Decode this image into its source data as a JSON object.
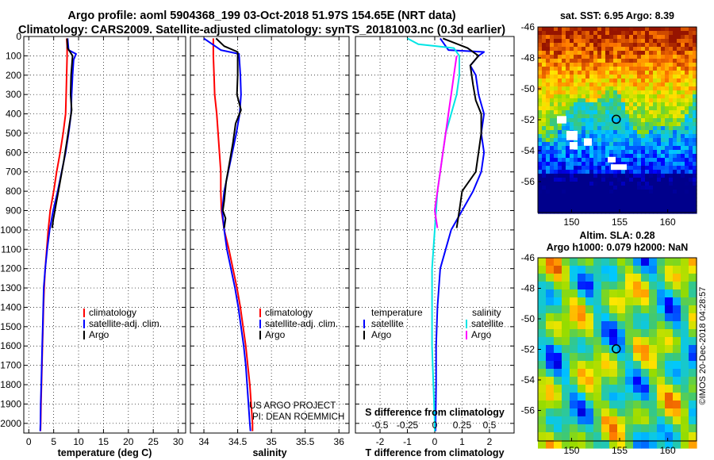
{
  "header": {
    "line1": "Argo profile: aoml 5904368_199 03-Oct-2018 51.97S 154.65E (NRT data)",
    "line2": "Climatology: CARS2009. Satellite-adjusted climatology: synTS_20181003.nc (0.3d earlier)"
  },
  "colors": {
    "climatology": "#ff0000",
    "satellite": "#0000ff",
    "argo": "#000000",
    "salinity_sat": "#00e5e5",
    "salinity_argo": "#ff00ff"
  },
  "credit": {
    "line1": "US ARGO PROJECT",
    "line2": "PI: DEAN ROEMMICH"
  },
  "watermark": "©IMOS 20-Dec-2018 04:28:57",
  "chart_data": [
    {
      "type": "line",
      "id": "temperature",
      "xlabel": "temperature (deg C)",
      "ylabel": "",
      "xlim": [
        -1,
        31.5
      ],
      "ylim": [
        2050,
        0
      ],
      "xticks": [
        0,
        5,
        10,
        15,
        20,
        25,
        30
      ],
      "yticks": [
        0,
        100,
        200,
        300,
        400,
        500,
        600,
        700,
        800,
        900,
        1000,
        1100,
        1200,
        1300,
        1400,
        1500,
        1600,
        1700,
        1800,
        1900,
        2000
      ],
      "grid": true,
      "legend": {
        "position": "lower-right",
        "entries": [
          "climatology",
          "satellite-adj. clim.",
          "Argo"
        ]
      },
      "series": [
        {
          "name": "climatology",
          "color": "#ff0000",
          "points": [
            [
              7.6,
              10
            ],
            [
              7.7,
              50
            ],
            [
              7.7,
              100
            ],
            [
              7.6,
              200
            ],
            [
              7.5,
              300
            ],
            [
              7.4,
              400
            ],
            [
              6.9,
              500
            ],
            [
              6.3,
              600
            ],
            [
              5.6,
              700
            ],
            [
              5.0,
              800
            ],
            [
              4.3,
              900
            ],
            [
              3.9,
              1000
            ],
            [
              3.6,
              1100
            ],
            [
              3.3,
              1200
            ],
            [
              3.1,
              1300
            ],
            [
              2.95,
              1400
            ],
            [
              2.85,
              1500
            ],
            [
              2.75,
              1600
            ],
            [
              2.65,
              1700
            ],
            [
              2.55,
              1800
            ],
            [
              2.45,
              1900
            ],
            [
              2.4,
              2000
            ],
            [
              2.35,
              2040
            ]
          ]
        },
        {
          "name": "satellite-adj. clim.",
          "color": "#0000ff",
          "points": [
            [
              7.8,
              10
            ],
            [
              8.0,
              70
            ],
            [
              9.5,
              90
            ],
            [
              9.0,
              120
            ],
            [
              8.8,
              200
            ],
            [
              8.6,
              300
            ],
            [
              8.5,
              400
            ],
            [
              8.0,
              500
            ],
            [
              7.4,
              600
            ],
            [
              6.6,
              700
            ],
            [
              5.8,
              800
            ],
            [
              4.9,
              900
            ],
            [
              4.2,
              1000
            ],
            [
              3.7,
              1100
            ],
            [
              3.3,
              1200
            ],
            [
              3.0,
              1300
            ],
            [
              2.9,
              1400
            ],
            [
              2.8,
              1500
            ],
            [
              2.7,
              1600
            ],
            [
              2.6,
              1700
            ],
            [
              2.5,
              1800
            ],
            [
              2.4,
              1900
            ],
            [
              2.35,
              2000
            ],
            [
              2.3,
              2040
            ]
          ]
        },
        {
          "name": "Argo",
          "color": "#000000",
          "points": [
            [
              7.7,
              10
            ],
            [
              7.8,
              60
            ],
            [
              8.8,
              100
            ],
            [
              8.5,
              200
            ],
            [
              8.4,
              300
            ],
            [
              8.6,
              380
            ],
            [
              8.2,
              450
            ],
            [
              7.6,
              550
            ],
            [
              7.0,
              650
            ],
            [
              6.3,
              750
            ],
            [
              5.6,
              850
            ],
            [
              4.9,
              950
            ],
            [
              4.7,
              990
            ]
          ]
        }
      ]
    },
    {
      "type": "line",
      "id": "salinity",
      "xlabel": "salinity",
      "ylabel": "",
      "xlim": [
        33.8,
        36.15
      ],
      "ylim": [
        2050,
        0
      ],
      "xticks": [
        34,
        34.5,
        35,
        35.5,
        36
      ],
      "grid": true,
      "legend": {
        "position": "lower-right",
        "entries": [
          "climatology",
          "satellite-adj. clim.",
          "Argo"
        ]
      },
      "series": [
        {
          "name": "climatology",
          "color": "#ff0000",
          "points": [
            [
              34.14,
              10
            ],
            [
              34.14,
              100
            ],
            [
              34.15,
              200
            ],
            [
              34.16,
              300
            ],
            [
              34.19,
              400
            ],
            [
              34.21,
              500
            ],
            [
              34.23,
              600
            ],
            [
              34.25,
              700
            ],
            [
              34.25,
              800
            ],
            [
              34.26,
              900
            ],
            [
              34.3,
              1000
            ],
            [
              34.37,
              1100
            ],
            [
              34.43,
              1200
            ],
            [
              34.49,
              1300
            ],
            [
              34.54,
              1400
            ],
            [
              34.58,
              1500
            ],
            [
              34.62,
              1600
            ],
            [
              34.65,
              1700
            ],
            [
              34.68,
              1800
            ],
            [
              34.7,
              1900
            ],
            [
              34.72,
              2000
            ],
            [
              34.72,
              2040
            ]
          ]
        },
        {
          "name": "satellite-adj. clim.",
          "color": "#0000ff",
          "points": [
            [
              34.0,
              10
            ],
            [
              34.25,
              70
            ],
            [
              34.52,
              90
            ],
            [
              34.54,
              200
            ],
            [
              34.55,
              300
            ],
            [
              34.53,
              400
            ],
            [
              34.48,
              500
            ],
            [
              34.42,
              600
            ],
            [
              34.36,
              700
            ],
            [
              34.3,
              800
            ],
            [
              34.27,
              900
            ],
            [
              34.3,
              1000
            ],
            [
              34.34,
              1100
            ],
            [
              34.4,
              1200
            ],
            [
              34.46,
              1300
            ],
            [
              34.51,
              1400
            ],
            [
              34.55,
              1500
            ],
            [
              34.59,
              1600
            ],
            [
              34.62,
              1700
            ],
            [
              34.64,
              1800
            ],
            [
              34.66,
              1900
            ],
            [
              34.68,
              2000
            ],
            [
              34.69,
              2040
            ]
          ]
        },
        {
          "name": "Argo",
          "color": "#000000",
          "points": [
            [
              34.18,
              10
            ],
            [
              34.3,
              50
            ],
            [
              34.5,
              80
            ],
            [
              34.5,
              200
            ],
            [
              34.49,
              300
            ],
            [
              34.55,
              380
            ],
            [
              34.47,
              450
            ],
            [
              34.43,
              550
            ],
            [
              34.38,
              650
            ],
            [
              34.33,
              750
            ],
            [
              34.3,
              850
            ],
            [
              34.28,
              900
            ],
            [
              34.32,
              940
            ],
            [
              34.3,
              990
            ]
          ]
        }
      ]
    },
    {
      "type": "line",
      "id": "difference",
      "xlabel": "T difference from climatology",
      "xlabel2": "S difference from climatology",
      "xlim": [
        -2.9,
        2.9
      ],
      "ylim": [
        2050,
        0
      ],
      "xticks": [
        -2,
        -1,
        0,
        1,
        2
      ],
      "xticks2": [
        "-0.5",
        "-0.25",
        "0",
        "0.25",
        "0.5"
      ],
      "grid": true,
      "legend_left": {
        "title": "temperature",
        "entries": [
          "satellite",
          "Argo"
        ]
      },
      "legend_right": {
        "title": "salinity",
        "entries": [
          "satellite",
          "Argo"
        ]
      },
      "series": [
        {
          "name": "temperature satellite",
          "color": "#0000ff",
          "points": [
            [
              0.2,
              10
            ],
            [
              0.5,
              70
            ],
            [
              1.8,
              80
            ],
            [
              1.6,
              100
            ],
            [
              1.3,
              150
            ],
            [
              1.5,
              200
            ],
            [
              1.6,
              300
            ],
            [
              1.8,
              400
            ],
            [
              1.7,
              500
            ],
            [
              1.8,
              600
            ],
            [
              1.7,
              700
            ],
            [
              1.4,
              800
            ],
            [
              1.0,
              900
            ],
            [
              0.6,
              1000
            ],
            [
              0.4,
              1100
            ],
            [
              0.2,
              1200
            ],
            [
              0.1,
              1400
            ],
            [
              0.05,
              1600
            ],
            [
              0.05,
              1800
            ],
            [
              0.03,
              2000
            ],
            [
              0.03,
              2040
            ]
          ]
        },
        {
          "name": "temperature Argo",
          "color": "#000000",
          "points": [
            [
              0.3,
              10
            ],
            [
              1.2,
              60
            ],
            [
              1.6,
              100
            ],
            [
              1.3,
              150
            ],
            [
              1.4,
              250
            ],
            [
              1.5,
              330
            ],
            [
              1.7,
              400
            ],
            [
              1.7,
              500
            ],
            [
              1.6,
              600
            ],
            [
              1.5,
              700
            ],
            [
              1.0,
              800
            ],
            [
              0.9,
              900
            ],
            [
              0.8,
              990
            ]
          ]
        },
        {
          "name": "salinity satellite",
          "color": "#00e5e5",
          "points": [
            [
              -1.0,
              10
            ],
            [
              -0.6,
              40
            ],
            [
              0.7,
              60
            ],
            [
              0.9,
              100
            ],
            [
              0.9,
              200
            ],
            [
              0.8,
              300
            ],
            [
              0.6,
              400
            ],
            [
              0.4,
              500
            ],
            [
              0.3,
              600
            ],
            [
              0.2,
              700
            ],
            [
              0.1,
              800
            ],
            [
              0.05,
              900
            ],
            [
              0.0,
              1000
            ],
            [
              -0.05,
              1100
            ],
            [
              -0.1,
              1200
            ],
            [
              -0.1,
              1400
            ],
            [
              -0.1,
              1600
            ],
            [
              -0.05,
              1800
            ],
            [
              0.0,
              2000
            ],
            [
              0.0,
              2040
            ]
          ]
        },
        {
          "name": "salinity Argo",
          "color": "#ff00ff",
          "points": [
            [
              0.8,
              100
            ],
            [
              0.7,
              200
            ],
            [
              0.6,
              300
            ],
            [
              0.5,
              400
            ],
            [
              0.4,
              500
            ],
            [
              0.3,
              600
            ],
            [
              0.2,
              700
            ],
            [
              0.1,
              800
            ],
            [
              0.0,
              900
            ],
            [
              0.1,
              990
            ]
          ]
        }
      ]
    },
    {
      "type": "heatmap",
      "id": "sst_map",
      "title": "sat. SST: 6.95 Argo: 8.39",
      "xlim": [
        146.5,
        163
      ],
      "ylim": [
        -58,
        -46
      ],
      "xticks": [
        150,
        155,
        160
      ],
      "yticks": [
        -46,
        -48,
        -50,
        -52,
        -54,
        -56
      ],
      "marker": {
        "lon": 154.65,
        "lat": -51.97
      }
    },
    {
      "type": "heatmap",
      "id": "sla_map",
      "title": "Altim. SLA: 0.28",
      "subtitle": "Argo h1000: 0.079 h2000: NaN",
      "xlim": [
        146.5,
        163
      ],
      "ylim": [
        -58,
        -46
      ],
      "xticks": [
        150,
        155,
        160
      ],
      "yticks": [
        -46,
        -48,
        -50,
        -52,
        -54,
        -56
      ],
      "marker": {
        "lon": 154.65,
        "lat": -51.97
      }
    }
  ]
}
